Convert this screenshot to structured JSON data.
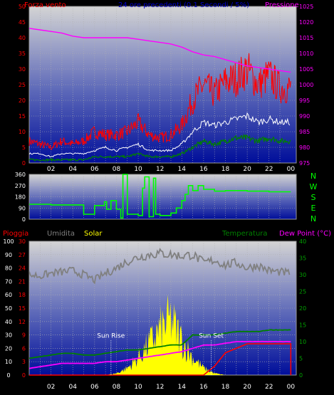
{
  "colors": {
    "wind": "#ff0000",
    "windAvg": "#ffffff",
    "windMin": "#008000",
    "pressure": "#ff00ff",
    "direction": "#00ff00",
    "rain": "#ff0000",
    "humidity": "#808080",
    "solar": "#ffff00",
    "temperature": "#008000",
    "dewpoint": "#ff00ff"
  },
  "time_ticks": [
    "02",
    "04",
    "06",
    "08",
    "10",
    "12",
    "14",
    "16",
    "18",
    "20",
    "22",
    "00"
  ],
  "compass": [
    "N",
    "W",
    "S",
    "E",
    "N"
  ],
  "chart_data": [
    {
      "type": "line",
      "title": "24 ore precedenti (0.1 Secondi / 5%)",
      "ylabel_left": "Forza vento",
      "ylabel_right": "Pressione",
      "y_left_ticks": [
        "0",
        "5",
        "10",
        "15",
        "20",
        "25",
        "30",
        "35",
        "40",
        "45",
        "50"
      ],
      "y_right_ticks": [
        "975",
        "980",
        "985",
        "990",
        "995",
        "1000",
        "1005",
        "1010",
        "1015",
        "1020",
        "1025"
      ],
      "ylim_left": [
        0,
        50
      ],
      "ylim_right": [
        975,
        1025
      ],
      "x_hours": [
        0,
        1,
        2,
        3,
        4,
        5,
        6,
        7,
        8,
        9,
        10,
        11,
        12,
        13,
        14,
        15,
        16,
        17,
        18,
        19,
        20,
        21,
        22,
        23,
        24
      ],
      "series": [
        {
          "key": "wind_gust",
          "values": [
            7,
            6,
            5,
            7,
            6,
            7,
            10,
            9,
            9,
            10,
            13,
            9,
            8,
            9,
            12,
            20,
            25,
            22,
            26,
            27,
            30,
            25,
            28,
            24,
            24
          ]
        },
        {
          "key": "wind_avg",
          "values": [
            3,
            3,
            2,
            3,
            3,
            3,
            4,
            5,
            4,
            5,
            6,
            4,
            4,
            4,
            6,
            10,
            13,
            12,
            13,
            14,
            15,
            13,
            14,
            13,
            13
          ]
        },
        {
          "key": "wind_low",
          "values": [
            1,
            1,
            1,
            1,
            1,
            1,
            2,
            2,
            2,
            2,
            3,
            2,
            2,
            2,
            3,
            5,
            7,
            6,
            7,
            8,
            8,
            7,
            8,
            7,
            7
          ]
        },
        {
          "key": "pressure",
          "values": [
            1018,
            1017.5,
            1017,
            1016.5,
            1015.5,
            1015,
            1015,
            1015,
            1015,
            1015,
            1014.5,
            1014,
            1013.5,
            1013,
            1012,
            1010.5,
            1009.5,
            1009,
            1008,
            1007,
            1006,
            1005.5,
            1005,
            1004.5,
            1004
          ]
        }
      ]
    },
    {
      "type": "line",
      "series_key": "wind_direction",
      "y_ticks": [
        "360",
        "270",
        "180",
        "90",
        "0"
      ],
      "ylim": [
        0,
        360
      ],
      "x_hours": [
        0,
        2,
        5,
        6,
        6.9,
        7.1,
        7.5,
        8,
        8.4,
        8.6,
        9,
        10,
        10.4,
        10.6,
        11,
        11.4,
        11.6,
        12,
        13,
        13.5,
        14,
        14.3,
        14.6,
        15,
        15.5,
        16,
        17,
        18,
        20,
        22,
        24
      ],
      "values": [
        120,
        115,
        40,
        110,
        140,
        80,
        150,
        80,
        10,
        360,
        40,
        30,
        250,
        340,
        20,
        330,
        40,
        30,
        50,
        90,
        150,
        200,
        270,
        230,
        270,
        240,
        225,
        230,
        225,
        220,
        220
      ]
    },
    {
      "type": "line",
      "y_ticks_left_a": [
        "0",
        "10",
        "20",
        "30",
        "40",
        "50",
        "60",
        "70",
        "80",
        "90",
        "100"
      ],
      "y_ticks_left_b": [
        "0",
        "3",
        "6",
        "9",
        "12",
        "15",
        "18",
        "21",
        "24",
        "27",
        "30"
      ],
      "y_ticks_right": [
        "0",
        "5",
        "10",
        "15",
        "20",
        "25",
        "30",
        "35",
        "40"
      ],
      "labels": {
        "rain": "Pioggia",
        "humidity": "Umidita",
        "solar": "Solar",
        "temperature": "Temperatura",
        "dewpoint": "Dew Point (°C)"
      },
      "annotations": {
        "sunrise": "Sun Rise",
        "sunset": "Sun Set",
        "sunrise_hour": 7.5,
        "sunset_hour": 16.7
      },
      "ylim_left_a": [
        0,
        100
      ],
      "ylim_left_b": [
        0,
        30
      ],
      "ylim_right": [
        0,
        40
      ],
      "x_hours": [
        0,
        1,
        2,
        3,
        4,
        5,
        6,
        7,
        8,
        9,
        10,
        11,
        12,
        13,
        14,
        15,
        16,
        17,
        18,
        19,
        20,
        21,
        22,
        23,
        24
      ],
      "series": [
        {
          "key": "humidity",
          "values": [
            75,
            74,
            76,
            77,
            78,
            75,
            71,
            76,
            80,
            85,
            88,
            90,
            91,
            90,
            89,
            90,
            84,
            86,
            82,
            84,
            80,
            82,
            78,
            77,
            76
          ]
        },
        {
          "key": "temperature",
          "values": [
            5,
            5.5,
            6,
            6.5,
            6.5,
            6,
            6,
            6.5,
            7,
            7.5,
            7.5,
            8,
            8.5,
            9,
            9,
            12,
            12,
            12,
            12.5,
            13,
            13,
            13,
            13.5,
            13.5,
            13.5
          ]
        },
        {
          "key": "dewpoint",
          "values": [
            2,
            2.5,
            3,
            3.5,
            3.5,
            3.5,
            3.5,
            4,
            4,
            4.5,
            5,
            5.5,
            6,
            6.5,
            7,
            8,
            9,
            9,
            9.5,
            10,
            10,
            10,
            10,
            10,
            10
          ]
        },
        {
          "key": "rain",
          "values": [
            0,
            0,
            0,
            0,
            0,
            0,
            0,
            0,
            0,
            0,
            0,
            0,
            0,
            0,
            0,
            0,
            0,
            2,
            5,
            6,
            7,
            7,
            7,
            7,
            7
          ]
        },
        {
          "key": "solar",
          "values": [
            0,
            0,
            0,
            0,
            0,
            0,
            0,
            0,
            0.5,
            2,
            5,
            9,
            13,
            16,
            10,
            5,
            2,
            0.5,
            0,
            0,
            0,
            0,
            0,
            0,
            0
          ]
        }
      ]
    }
  ]
}
